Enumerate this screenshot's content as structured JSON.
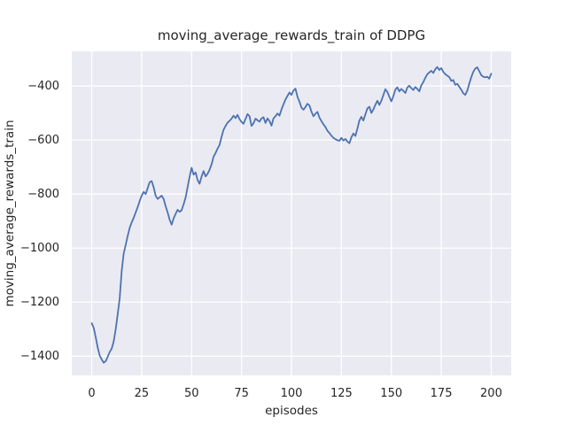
{
  "chart_data": {
    "type": "line",
    "title": "moving_average_rewards_train of DDPG",
    "xlabel": "episodes",
    "ylabel": "moving_average_rewards_train",
    "xlim": [
      -10,
      210
    ],
    "ylim": [
      -1471,
      -272
    ],
    "xticks": [
      0,
      25,
      50,
      75,
      100,
      125,
      150,
      175,
      200
    ],
    "yticks": [
      -400,
      -600,
      -800,
      -1000,
      -1200,
      -1400
    ],
    "grid": true,
    "legend": "none",
    "colors": {
      "line": "#4c72b0",
      "axes_background": "#eaeaf2",
      "grid": "#ffffff",
      "text": "#262626",
      "figure_background": "#ffffff"
    },
    "series": [
      {
        "name": "moving_average_rewards_train",
        "x_start": 0,
        "x_step": 1,
        "values": [
          -1278,
          -1295,
          -1330,
          -1368,
          -1398,
          -1412,
          -1424,
          -1418,
          -1402,
          -1384,
          -1372,
          -1345,
          -1300,
          -1245,
          -1185,
          -1085,
          -1020,
          -988,
          -955,
          -925,
          -905,
          -888,
          -868,
          -848,
          -826,
          -806,
          -792,
          -800,
          -778,
          -756,
          -752,
          -775,
          -806,
          -818,
          -812,
          -806,
          -818,
          -845,
          -868,
          -895,
          -913,
          -890,
          -873,
          -858,
          -866,
          -860,
          -838,
          -813,
          -774,
          -736,
          -703,
          -728,
          -720,
          -748,
          -762,
          -735,
          -715,
          -735,
          -725,
          -710,
          -690,
          -662,
          -648,
          -632,
          -618,
          -588,
          -562,
          -548,
          -536,
          -529,
          -521,
          -510,
          -519,
          -507,
          -523,
          -533,
          -540,
          -522,
          -504,
          -512,
          -548,
          -538,
          -521,
          -527,
          -532,
          -520,
          -516,
          -537,
          -520,
          -530,
          -547,
          -520,
          -512,
          -502,
          -510,
          -487,
          -468,
          -450,
          -437,
          -424,
          -433,
          -417,
          -410,
          -440,
          -458,
          -480,
          -488,
          -478,
          -466,
          -472,
          -495,
          -512,
          -503,
          -496,
          -517,
          -530,
          -542,
          -552,
          -566,
          -574,
          -584,
          -592,
          -597,
          -601,
          -603,
          -592,
          -602,
          -596,
          -606,
          -612,
          -590,
          -576,
          -585,
          -558,
          -528,
          -514,
          -528,
          -505,
          -483,
          -477,
          -500,
          -487,
          -470,
          -455,
          -470,
          -455,
          -434,
          -412,
          -422,
          -440,
          -457,
          -438,
          -414,
          -405,
          -420,
          -411,
          -418,
          -426,
          -406,
          -399,
          -408,
          -415,
          -404,
          -411,
          -420,
          -398,
          -386,
          -370,
          -357,
          -350,
          -344,
          -352,
          -338,
          -330,
          -341,
          -334,
          -348,
          -356,
          -362,
          -367,
          -381,
          -378,
          -396,
          -392,
          -403,
          -414,
          -427,
          -433,
          -418,
          -392,
          -368,
          -348,
          -336,
          -331,
          -345,
          -360,
          -366,
          -368,
          -366,
          -373,
          -355
        ]
      }
    ]
  }
}
